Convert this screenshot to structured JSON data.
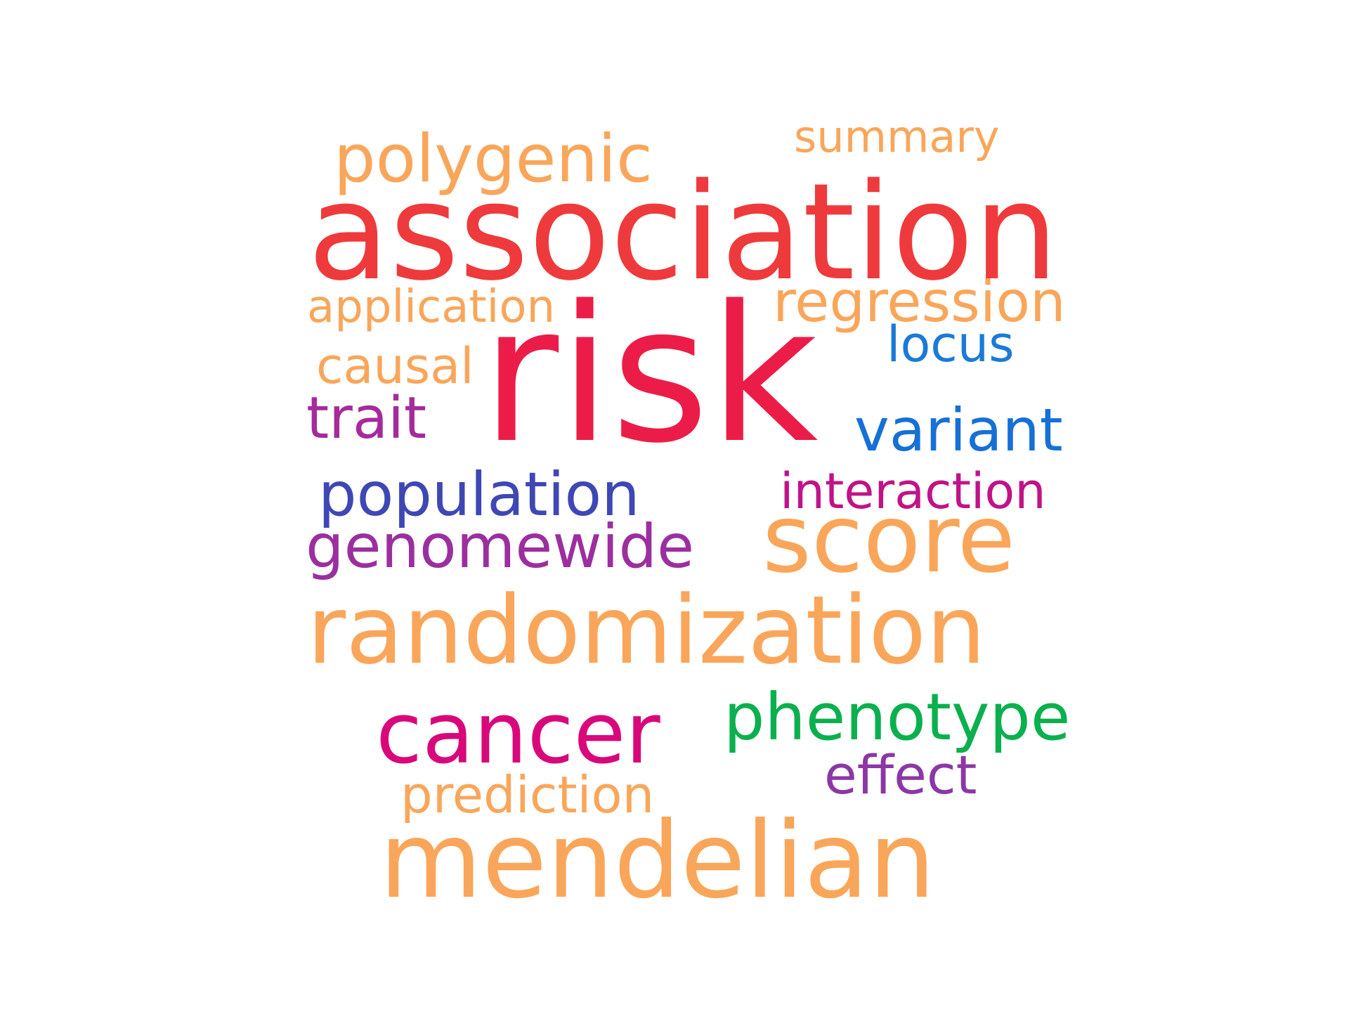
{
  "words": {
    "polygenic": {
      "text": "polygenic",
      "color": "#F9A65A"
    },
    "summary": {
      "text": "summary",
      "color": "#F9A65A"
    },
    "association": {
      "text": "association",
      "color": "#EE3A3C"
    },
    "application": {
      "text": "application",
      "color": "#F9A65A"
    },
    "regression": {
      "text": "regression",
      "color": "#F9A65A"
    },
    "locus": {
      "text": "locus",
      "color": "#1B7AD6"
    },
    "causal": {
      "text": "causal",
      "color": "#F9A65A"
    },
    "risk": {
      "text": "risk",
      "color": "#EC1C49"
    },
    "trait": {
      "text": "trait",
      "color": "#A52A9C"
    },
    "variant": {
      "text": "variant",
      "color": "#1670D6"
    },
    "population": {
      "text": "population",
      "color": "#3F47B5"
    },
    "interaction": {
      "text": "interaction",
      "color": "#C01388"
    },
    "genomewide": {
      "text": "genomewide",
      "color": "#9B2F9F"
    },
    "score": {
      "text": "score",
      "color": "#F9A65A"
    },
    "randomization": {
      "text": "randomization",
      "color": "#F9A65A"
    },
    "cancer": {
      "text": "cancer",
      "color": "#D9087A"
    },
    "phenotype": {
      "text": "phenotype",
      "color": "#0BB04E"
    },
    "effect": {
      "text": "effect",
      "color": "#8C37A6"
    },
    "prediction": {
      "text": "prediction",
      "color": "#F9A65A"
    },
    "mendelian": {
      "text": "mendelian",
      "color": "#F9A65A"
    }
  }
}
